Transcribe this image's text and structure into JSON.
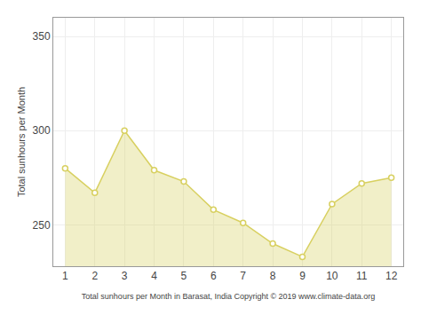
{
  "chart_data": {
    "type": "area",
    "x": [
      1,
      2,
      3,
      4,
      5,
      6,
      7,
      8,
      9,
      10,
      11,
      12
    ],
    "values": [
      280,
      267,
      300,
      279,
      273,
      258,
      251,
      240,
      233,
      261,
      272,
      275
    ],
    "color": "#D8D060",
    "marker": "circle",
    "xlabel": "Total sunhours per Month in Barasat, India Copyright © 2019 www.climate-data.org",
    "ylabel": "Total sunhours per Month",
    "xlim": [
      0.6,
      12.4
    ],
    "ylim": [
      228,
      360
    ],
    "xticks": [
      1,
      2,
      3,
      4,
      5,
      6,
      7,
      8,
      9,
      10,
      11,
      12
    ],
    "yticks": [
      250,
      300,
      350
    ],
    "grid": true
  }
}
